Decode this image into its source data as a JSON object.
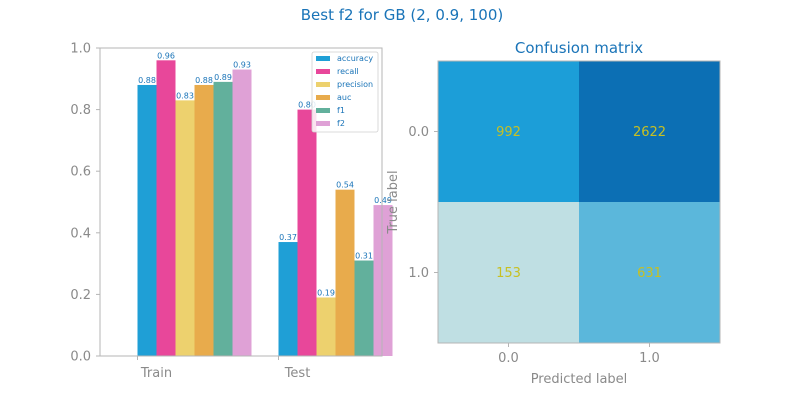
{
  "suptitle": "Best f2 for GB (2, 0.9, 100)",
  "chart_data": [
    {
      "type": "bar",
      "categories": [
        "Train",
        "Test"
      ],
      "series": [
        {
          "name": "accuracy",
          "values": [
            0.88,
            0.37
          ],
          "color": "#1f9fd6"
        },
        {
          "name": "recall",
          "values": [
            0.96,
            0.8
          ],
          "color": "#e8479a"
        },
        {
          "name": "precision",
          "values": [
            0.83,
            0.19
          ],
          "color": "#edd16e"
        },
        {
          "name": "auc",
          "values": [
            0.88,
            0.54
          ],
          "color": "#e8ab4c"
        },
        {
          "name": "f1",
          "values": [
            0.89,
            0.31
          ],
          "color": "#62b09c"
        },
        {
          "name": "f2",
          "values": [
            0.93,
            0.49
          ],
          "color": "#dfa1d6"
        }
      ],
      "data_labels": [
        [
          "0.88",
          "0.96",
          "0.83",
          "0.88",
          "0.89",
          "0.93"
        ],
        [
          "0.37",
          "0.80",
          "0.19",
          "0.54",
          "0.31",
          "0.49"
        ]
      ],
      "ylim": [
        0,
        1
      ],
      "yticks": [
        "0.0",
        "0.2",
        "0.4",
        "0.6",
        "0.8",
        "1.0"
      ],
      "legend_position": "top-right",
      "grid": false
    },
    {
      "type": "heatmap",
      "title": "Confusion matrix",
      "xlabel": "Predicted label",
      "ylabel": "True label",
      "x_ticks": [
        "0.0",
        "1.0"
      ],
      "y_ticks": [
        "0.0",
        "1.0"
      ],
      "values": [
        [
          992,
          2622
        ],
        [
          153,
          631
        ]
      ],
      "cell_colors": [
        [
          "#1c9ed8",
          "#0c6fb4"
        ],
        [
          "#bfdfe3",
          "#5bb7db"
        ]
      ],
      "grid": false
    }
  ]
}
